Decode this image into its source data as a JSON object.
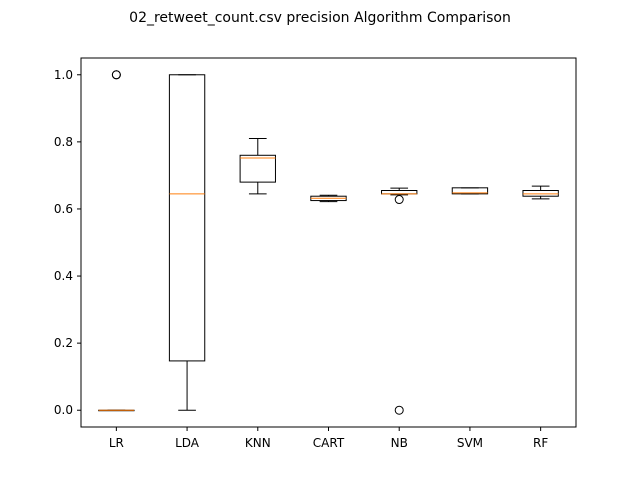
{
  "chart_data": {
    "type": "box",
    "title": "02_retweet_count.csv precision Algorithm Comparison",
    "xlabel": "",
    "ylabel": "",
    "ylim": [
      -0.05,
      1.05
    ],
    "yticks": [
      0.0,
      0.2,
      0.4,
      0.6,
      0.8,
      1.0
    ],
    "ytick_labels": [
      "0.0",
      "0.2",
      "0.4",
      "0.6",
      "0.8",
      "1.0"
    ],
    "grid": false,
    "categories": [
      "LR",
      "LDA",
      "KNN",
      "CART",
      "NB",
      "SVM",
      "RF"
    ],
    "boxes": [
      {
        "name": "LR",
        "whisker_low": 0.0,
        "q1": 0.0,
        "median": 0.0,
        "q3": 0.0,
        "whisker_high": 0.0,
        "outliers": [
          1.0,
          1.0
        ]
      },
      {
        "name": "LDA",
        "whisker_low": 0.0,
        "q1": 0.147,
        "median": 0.645,
        "q3": 1.0,
        "whisker_high": 1.0,
        "outliers": []
      },
      {
        "name": "KNN",
        "whisker_low": 0.645,
        "q1": 0.68,
        "median": 0.752,
        "q3": 0.76,
        "whisker_high": 0.81,
        "outliers": []
      },
      {
        "name": "CART",
        "whisker_low": 0.622,
        "q1": 0.625,
        "median": 0.632,
        "q3": 0.638,
        "whisker_high": 0.641,
        "outliers": []
      },
      {
        "name": "NB",
        "whisker_low": 0.642,
        "q1": 0.645,
        "median": 0.645,
        "q3": 0.655,
        "whisker_high": 0.662,
        "outliers": [
          0.628,
          0.0
        ]
      },
      {
        "name": "SVM",
        "whisker_low": 0.645,
        "q1": 0.645,
        "median": 0.648,
        "q3": 0.663,
        "whisker_high": 0.663,
        "outliers": []
      },
      {
        "name": "RF",
        "whisker_low": 0.63,
        "q1": 0.638,
        "median": 0.645,
        "q3": 0.655,
        "whisker_high": 0.668,
        "outliers": []
      }
    ],
    "colors": {
      "box": "#000000",
      "median": "#ff7f0e",
      "background": "#ffffff"
    }
  }
}
